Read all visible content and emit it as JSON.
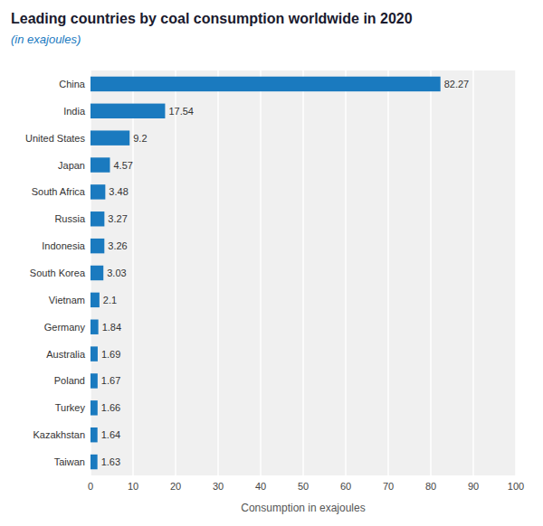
{
  "chart_data": {
    "type": "bar",
    "orientation": "horizontal",
    "title": "Leading countries by coal consumption worldwide in 2020",
    "subtitle": "(in exajoules)",
    "categories": [
      "Taiwan",
      "Kazakhstan",
      "Turkey",
      "Poland",
      "Australia",
      "Germany",
      "Vietnam",
      "South Korea",
      "Indonesia",
      "Russia",
      "South Africa",
      "Japan",
      "United States",
      "India",
      "China"
    ],
    "values": [
      1.63,
      1.64,
      1.66,
      1.67,
      1.69,
      1.84,
      2.1,
      3.03,
      3.26,
      3.27,
      3.48,
      4.57,
      9.2,
      17.54,
      82.27
    ],
    "color": "#1a7abf",
    "xlabel": "Consumption in exajoules",
    "xlim": [
      0,
      100
    ],
    "xticks": [
      0,
      10,
      20,
      30,
      40,
      50,
      60,
      70,
      80,
      90,
      100
    ],
    "grid": true,
    "data_labels": true
  }
}
